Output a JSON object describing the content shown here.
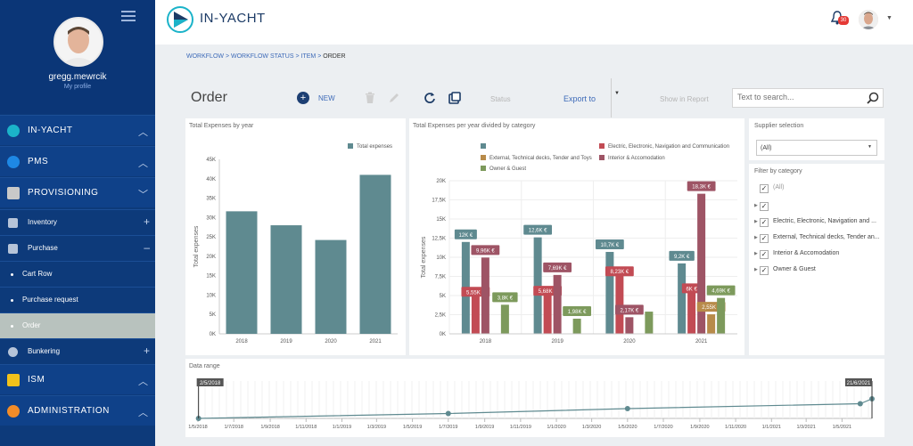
{
  "user": {
    "name": "gregg.mewrcik",
    "profile_link": "My profile"
  },
  "app": {
    "name": "IN-YACHT"
  },
  "notifications": {
    "count": "30"
  },
  "nav": {
    "sections": [
      {
        "label": "IN-YACHT",
        "icon": "in-yacht-logo-icon",
        "color": "#1bb3c9",
        "chevron": "up"
      },
      {
        "label": "PMS",
        "icon": "wrench-icon",
        "color": "#1e88e5",
        "chevron": "up"
      },
      {
        "label": "PROVISIONING",
        "icon": "package-icon",
        "color": "#c9c9c9",
        "chevron": "down"
      },
      {
        "label": "ISM",
        "icon": "ism-icon",
        "color": "#f2c21b",
        "chevron": "up"
      },
      {
        "label": "ADMINISTRATION",
        "icon": "admin-icon",
        "color": "#f28c28",
        "chevron": "up"
      }
    ],
    "sub": [
      {
        "label": "Inventory",
        "toggle": "+"
      },
      {
        "label": "Purchase",
        "toggle": "–"
      },
      {
        "label": "Bunkering",
        "toggle": "+"
      }
    ],
    "leaves": [
      "Cart Row",
      "Purchase request",
      "Order"
    ],
    "active_leaf": "Order"
  },
  "breadcrumb": {
    "items": [
      "WORKFLOW",
      "WORKFLOW STATUS",
      "ITEM"
    ],
    "current": "ORDER",
    "separator": ">"
  },
  "toolbar": {
    "title": "Order",
    "new_label": "NEW",
    "status_label": "Status",
    "export_label": "Export to",
    "show_report_label": "Show in Report",
    "search_placeholder": "Text to search..."
  },
  "panels": {
    "by_year_title": "Total Expenses by year",
    "by_category_title": "Total Expenses per year divided by category",
    "supplier_title": "Supplier selection",
    "supplier_value": "(All)",
    "filter_title": "Filter by category",
    "range_title": "Data range"
  },
  "filter_items": [
    {
      "label": "(All)",
      "checked": true,
      "expandable": false,
      "muted": true
    },
    {
      "label": "",
      "checked": true,
      "expandable": true,
      "muted": false
    },
    {
      "label": "Electric, Electronic, Navigation and ...",
      "checked": true,
      "expandable": true,
      "muted": false
    },
    {
      "label": "External, Technical decks, Tender an...",
      "checked": true,
      "expandable": true,
      "muted": false
    },
    {
      "label": "Interior & Accomodation",
      "checked": true,
      "expandable": true,
      "muted": false
    },
    {
      "label": "Owner & Guest",
      "checked": true,
      "expandable": true,
      "muted": false
    }
  ],
  "chart_data": [
    {
      "type": "bar",
      "title": "Total Expenses by year",
      "ylabel": "Total expenses",
      "categories": [
        "2018",
        "2019",
        "2020",
        "2021"
      ],
      "series": [
        {
          "name": "Total expenses",
          "values": [
            31600,
            28000,
            24200,
            41000
          ],
          "color": "#5f8a90"
        }
      ],
      "ylim": [
        0,
        45000
      ],
      "yticks": [
        "0K",
        "5K",
        "10K",
        "15K",
        "20K",
        "25K",
        "30K",
        "35K",
        "40K",
        "45K"
      ],
      "legend": "top-right",
      "grid": false
    },
    {
      "type": "bar",
      "title": "Total Expenses per year divided by category",
      "ylabel": "Total expenses",
      "categories": [
        "2018",
        "2019",
        "2020",
        "2021"
      ],
      "series": [
        {
          "name": "",
          "values": [
            12000,
            12600,
            10700,
            9200
          ],
          "labels": [
            "12K €",
            "12,6K €",
            "10,7K €",
            "9,2K €"
          ],
          "color": "#5f8a90"
        },
        {
          "name": "Electric, Electronic, Navigation and Communication",
          "values": [
            5550,
            5680,
            8230,
            6000
          ],
          "labels": [
            "5,55K €",
            "5,68K €",
            "8,23K €",
            "6K €"
          ],
          "color": "#c24b54"
        },
        {
          "name": "Interior & Accomodation",
          "values": [
            9960,
            7690,
            2170,
            18300
          ],
          "labels": [
            "9,96K €",
            "7,69K €",
            "2,17K €",
            "18,3K €"
          ],
          "color": "#9e5465"
        },
        {
          "name": "External, Technical decks, Tender and Toys",
          "values": [
            0,
            0,
            0,
            2550
          ],
          "labels": [
            "",
            "",
            "",
            "2,55K €"
          ],
          "color": "#b88b4a"
        },
        {
          "name": "Owner & Guest",
          "values": [
            3800,
            1980,
            2900,
            4690
          ],
          "labels": [
            "3,8K €",
            "1,98K €",
            "",
            "4,69K €"
          ],
          "color": "#7d9a5c"
        }
      ],
      "ylim": [
        0,
        20000
      ],
      "yticks": [
        "0K",
        "2,5K",
        "5K",
        "7,5K",
        "10K",
        "12,5K",
        "15K",
        "17,5K",
        "20K"
      ],
      "legend": "top",
      "grid": true
    },
    {
      "type": "line",
      "title": "Data range",
      "range_start": "2/5/2018",
      "range_end": "21/6/2021",
      "x_ticks": [
        "1/5/2018",
        "1/7/2018",
        "1/9/2018",
        "1/11/2018",
        "1/1/2019",
        "1/3/2019",
        "1/5/2019",
        "1/7/2019",
        "1/9/2019",
        "1/11/2019",
        "1/1/2020",
        "1/3/2020",
        "1/5/2020",
        "1/7/2020",
        "1/9/2020",
        "1/11/2020",
        "1/1/2021",
        "1/3/2021",
        "1/5/2021"
      ],
      "points": [
        {
          "x": "2/5/2018",
          "marker": true
        },
        {
          "x": "1/7/2019",
          "marker": true
        },
        {
          "x": "1/5/2020",
          "marker": true
        },
        {
          "x": "1/6/2021",
          "marker": true
        },
        {
          "x": "21/6/2021",
          "marker": true
        }
      ]
    }
  ]
}
